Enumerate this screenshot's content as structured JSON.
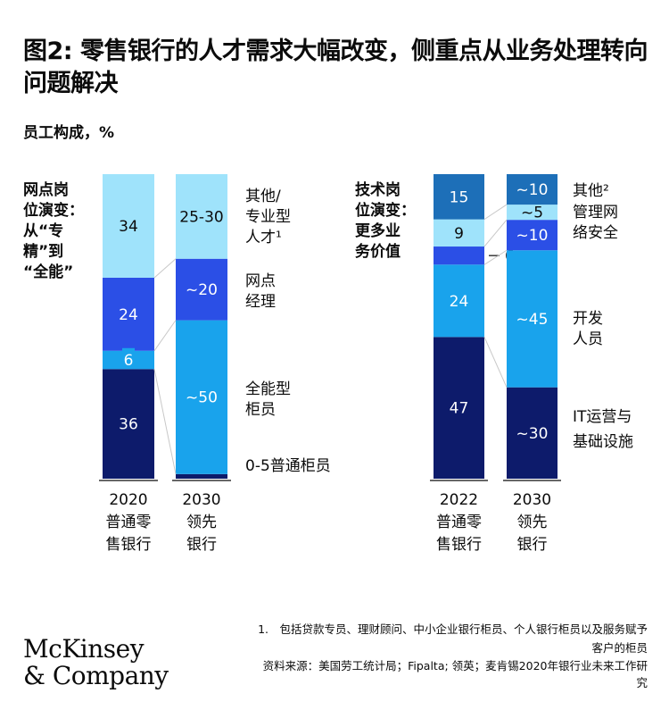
{
  "title": "图2: 零售银行的人才需求大幅改变，侧重点从业务处理转向问题解决",
  "subtitle": "员工构成，%",
  "footnote": "1.　包括贷款专员、理财顾问、中小企业银行柜员、个人银行柜员以及服务赋予客户的柜员",
  "source": "资料来源：美国劳工统计局；Fipalta; 领英；麦肯锡2020年银行业未来工作研究",
  "logo": [
    "McKinsey",
    "& Company"
  ],
  "colors": {
    "light": "#9fe3fb",
    "blue": "#2b4fe6",
    "cyan": "#19a3ec",
    "navy": "#0d1b6b",
    "steel": "#1d6fb8"
  },
  "chart_data": [
    {
      "type": "bar",
      "stacked": true,
      "group_label": [
        "网点岗",
        "位演变：",
        "从“专",
        "精”到",
        "“全能”"
      ],
      "bars": [
        {
          "label": [
            "2020",
            "普通零",
            "售银行"
          ],
          "segments": [
            {
              "category": "普通柜员",
              "value": 36,
              "label": "36",
              "color": "navy"
            },
            {
              "category": "全能型柜员",
              "value": 6,
              "label": "6",
              "color": "cyan"
            },
            {
              "category": "网点经理",
              "value": 24,
              "label": "24",
              "color": "blue"
            },
            {
              "category": "其他/专业型人才",
              "value": 34,
              "label": "34",
              "color": "light"
            }
          ]
        },
        {
          "label": [
            "2030",
            "领先",
            "银行"
          ],
          "segments": [
            {
              "category": "普通柜员",
              "value": 1.5,
              "label": "",
              "color": "navy"
            },
            {
              "category": "全能型柜员",
              "value": 50,
              "label": "~50",
              "color": "cyan"
            },
            {
              "category": "网点经理",
              "value": 20,
              "label": "~20",
              "color": "blue"
            },
            {
              "category": "其他/专业型人才",
              "value": 27.5,
              "label": "25-30",
              "color": "light"
            }
          ]
        }
      ],
      "legend": [
        {
          "lines": [
            "其他/",
            "专业型",
            "人才¹"
          ]
        },
        {
          "lines": [
            "网点",
            "经理"
          ]
        },
        {
          "lines": [
            "全能型",
            "柜员"
          ]
        },
        {
          "lines": [
            "0-5普通柜员"
          ]
        }
      ]
    },
    {
      "type": "bar",
      "stacked": true,
      "group_label": [
        "技术岗",
        "位演变：",
        "更多业",
        "务价值"
      ],
      "bars": [
        {
          "label": [
            "2022",
            "普通零",
            "售银行"
          ],
          "segments": [
            {
              "category": "IT运营与基础设施",
              "value": 47,
              "label": "47",
              "color": "navy"
            },
            {
              "category": "开发人员",
              "value": 24,
              "label": "24",
              "color": "cyan"
            },
            {
              "category": "网络安全",
              "value": 6,
              "label": "6",
              "color": "blue"
            },
            {
              "category": "管理",
              "value": 9,
              "label": "9",
              "color": "light"
            },
            {
              "category": "其他",
              "value": 15,
              "label": "15",
              "color": "steel"
            }
          ]
        },
        {
          "label": [
            "2030",
            "领先",
            "银行"
          ],
          "segments": [
            {
              "category": "IT运营与基础设施",
              "value": 30,
              "label": "~30",
              "color": "navy"
            },
            {
              "category": "开发人员",
              "value": 45,
              "label": "~45",
              "color": "cyan"
            },
            {
              "category": "网络安全",
              "value": 10,
              "label": "~10",
              "color": "blue"
            },
            {
              "category": "管理",
              "value": 5,
              "label": "~5",
              "color": "light"
            },
            {
              "category": "其他",
              "value": 10,
              "label": "~10",
              "color": "steel"
            }
          ]
        }
      ],
      "legend": [
        {
          "lines": [
            "其他²",
            "管理网",
            "络安全"
          ]
        },
        {
          "lines": [
            "开发",
            "人员"
          ]
        },
        {
          "lines": [
            "IT运营与",
            "基础设施"
          ]
        }
      ]
    }
  ]
}
